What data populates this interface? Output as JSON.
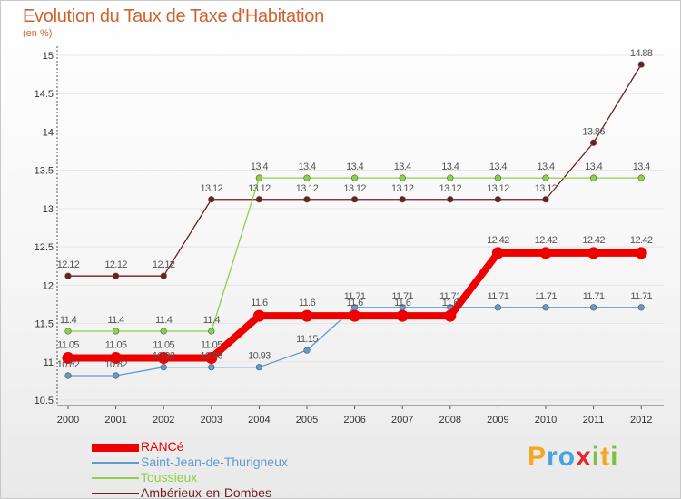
{
  "header": {
    "title": "Evolution du Taux de Taxe d'Habitation",
    "subtitle": "(en %)"
  },
  "colors": {
    "title": "#d0622f",
    "axis": "#555555",
    "grid": "#e6e6e6"
  },
  "chart_data": {
    "type": "line",
    "title": "Evolution du Taux de Taxe d'Habitation",
    "ylabel": "(en %)",
    "xlabel": "",
    "x": [
      "2000",
      "2001",
      "2002",
      "2003",
      "2004",
      "2005",
      "2006",
      "2007",
      "2008",
      "2009",
      "2010",
      "2011",
      "2012"
    ],
    "ylim": [
      10.5,
      15
    ],
    "yticks": [
      10.5,
      11,
      11.5,
      12,
      12.5,
      13,
      13.5,
      14,
      14.5,
      15
    ],
    "ytick_labels": [
      "10.5",
      "11",
      "11.5",
      "12",
      "12.5",
      "13",
      "13.5",
      "14",
      "14.5",
      "15"
    ],
    "grid": true,
    "legend_position": "bottom-left",
    "series": [
      {
        "name": "Ambérieux-en-Dombes",
        "color": "#6e1e1e",
        "emphasis": false,
        "values": [
          12.12,
          12.12,
          12.12,
          13.12,
          13.12,
          13.12,
          13.12,
          13.12,
          13.12,
          13.12,
          13.12,
          13.86,
          14.88
        ],
        "labels": [
          "12.12",
          "12.12",
          "12.12",
          "13.12",
          "13.12",
          "13.12",
          "13.12",
          "13.12",
          "13.12",
          "13.12",
          "13.12",
          "13.86",
          "14.88"
        ]
      },
      {
        "name": "Toussieux",
        "color": "#8cd246",
        "emphasis": false,
        "values": [
          11.4,
          11.4,
          11.4,
          11.4,
          13.4,
          13.4,
          13.4,
          13.4,
          13.4,
          13.4,
          13.4,
          13.4,
          13.4
        ],
        "labels": [
          "11.4",
          "11.4",
          "11.4",
          "11.4",
          "13.4",
          "13.4",
          "13.4",
          "13.4",
          "13.4",
          "13.4",
          "13.4",
          "13.4",
          "13.4"
        ]
      },
      {
        "name": "Saint-Jean-de-Thurigneux",
        "color": "#5f9ad3",
        "emphasis": false,
        "values": [
          10.82,
          10.82,
          10.93,
          10.93,
          10.93,
          11.15,
          11.71,
          11.71,
          11.71,
          11.71,
          11.71,
          11.71,
          11.71
        ],
        "labels": [
          "10.82",
          "10.82",
          "10.93",
          "10.93",
          "10.93",
          "11.15",
          "11.71",
          "11.71",
          "11.71",
          "11.71",
          "11.71",
          "11.71",
          "11.71"
        ]
      },
      {
        "name": "RANCé",
        "color": "#ee0000",
        "emphasis": true,
        "values": [
          11.05,
          11.05,
          11.05,
          11.05,
          11.6,
          11.6,
          11.6,
          11.6,
          11.6,
          12.42,
          12.42,
          12.42,
          12.42
        ],
        "labels": [
          "11.05",
          "11.05",
          "11.05",
          "11.05",
          "11.6",
          "11.6",
          "11.6",
          "11.6",
          "11.6",
          "12.42",
          "12.42",
          "12.42",
          "12.42"
        ]
      }
    ]
  },
  "legend": {
    "items": [
      {
        "label": "RANCé",
        "color": "#ee0000",
        "thick": true
      },
      {
        "label": "Saint-Jean-de-Thurigneux",
        "color": "#5f9ad3",
        "thick": false
      },
      {
        "label": "Toussieux",
        "color": "#8cd246",
        "thick": false
      },
      {
        "label": "Ambérieux-en-Dombes",
        "color": "#6e1e1e",
        "thick": false
      }
    ]
  },
  "logo": {
    "text": "Proxiti",
    "letters": [
      {
        "char": "P",
        "color": "#f5a623"
      },
      {
        "char": "r",
        "color": "#4aa3df"
      },
      {
        "char": "o",
        "color": "#4aa3df"
      },
      {
        "char": "x",
        "color": "#e8262b"
      },
      {
        "char": "i",
        "color": "#7cc242"
      },
      {
        "char": "t",
        "color": "#f5a623"
      },
      {
        "char": "i",
        "color": "#7cc242"
      }
    ]
  }
}
